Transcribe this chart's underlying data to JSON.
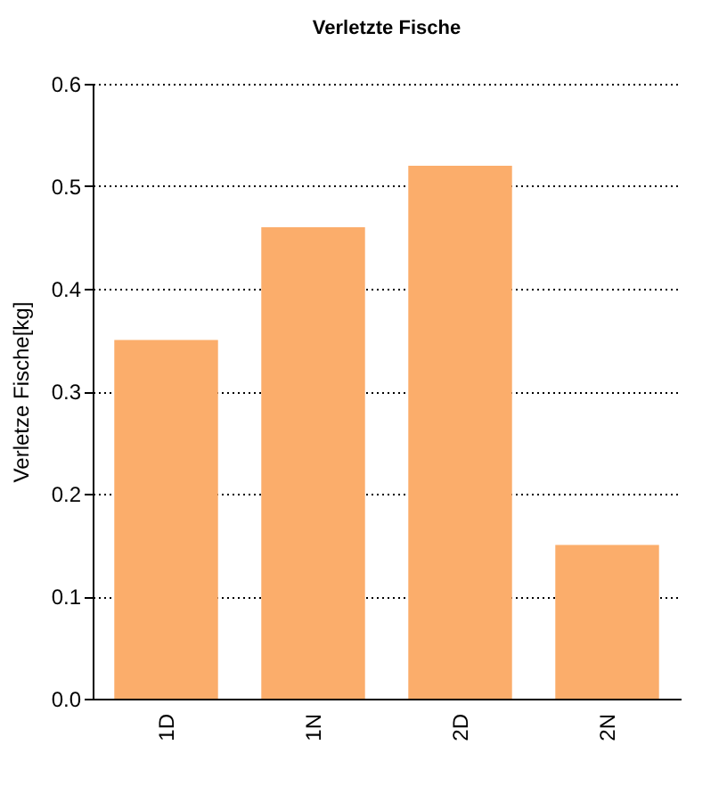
{
  "chart_data": {
    "type": "bar",
    "title": "Verletzte Fische",
    "ylabel": "Verletze Fische[kg]",
    "categories": [
      "1D",
      "1N",
      "2D",
      "2N"
    ],
    "values": [
      0.35,
      0.46,
      0.52,
      0.15
    ],
    "color": "#fbad6b",
    "ylim": [
      0,
      0.6
    ],
    "yticks": [
      {
        "value": 0,
        "label": "0.0"
      },
      0.1,
      0.2,
      0.3,
      0.4,
      0.5,
      0.6
    ],
    "grid": "y",
    "line_style": "dotted"
  }
}
